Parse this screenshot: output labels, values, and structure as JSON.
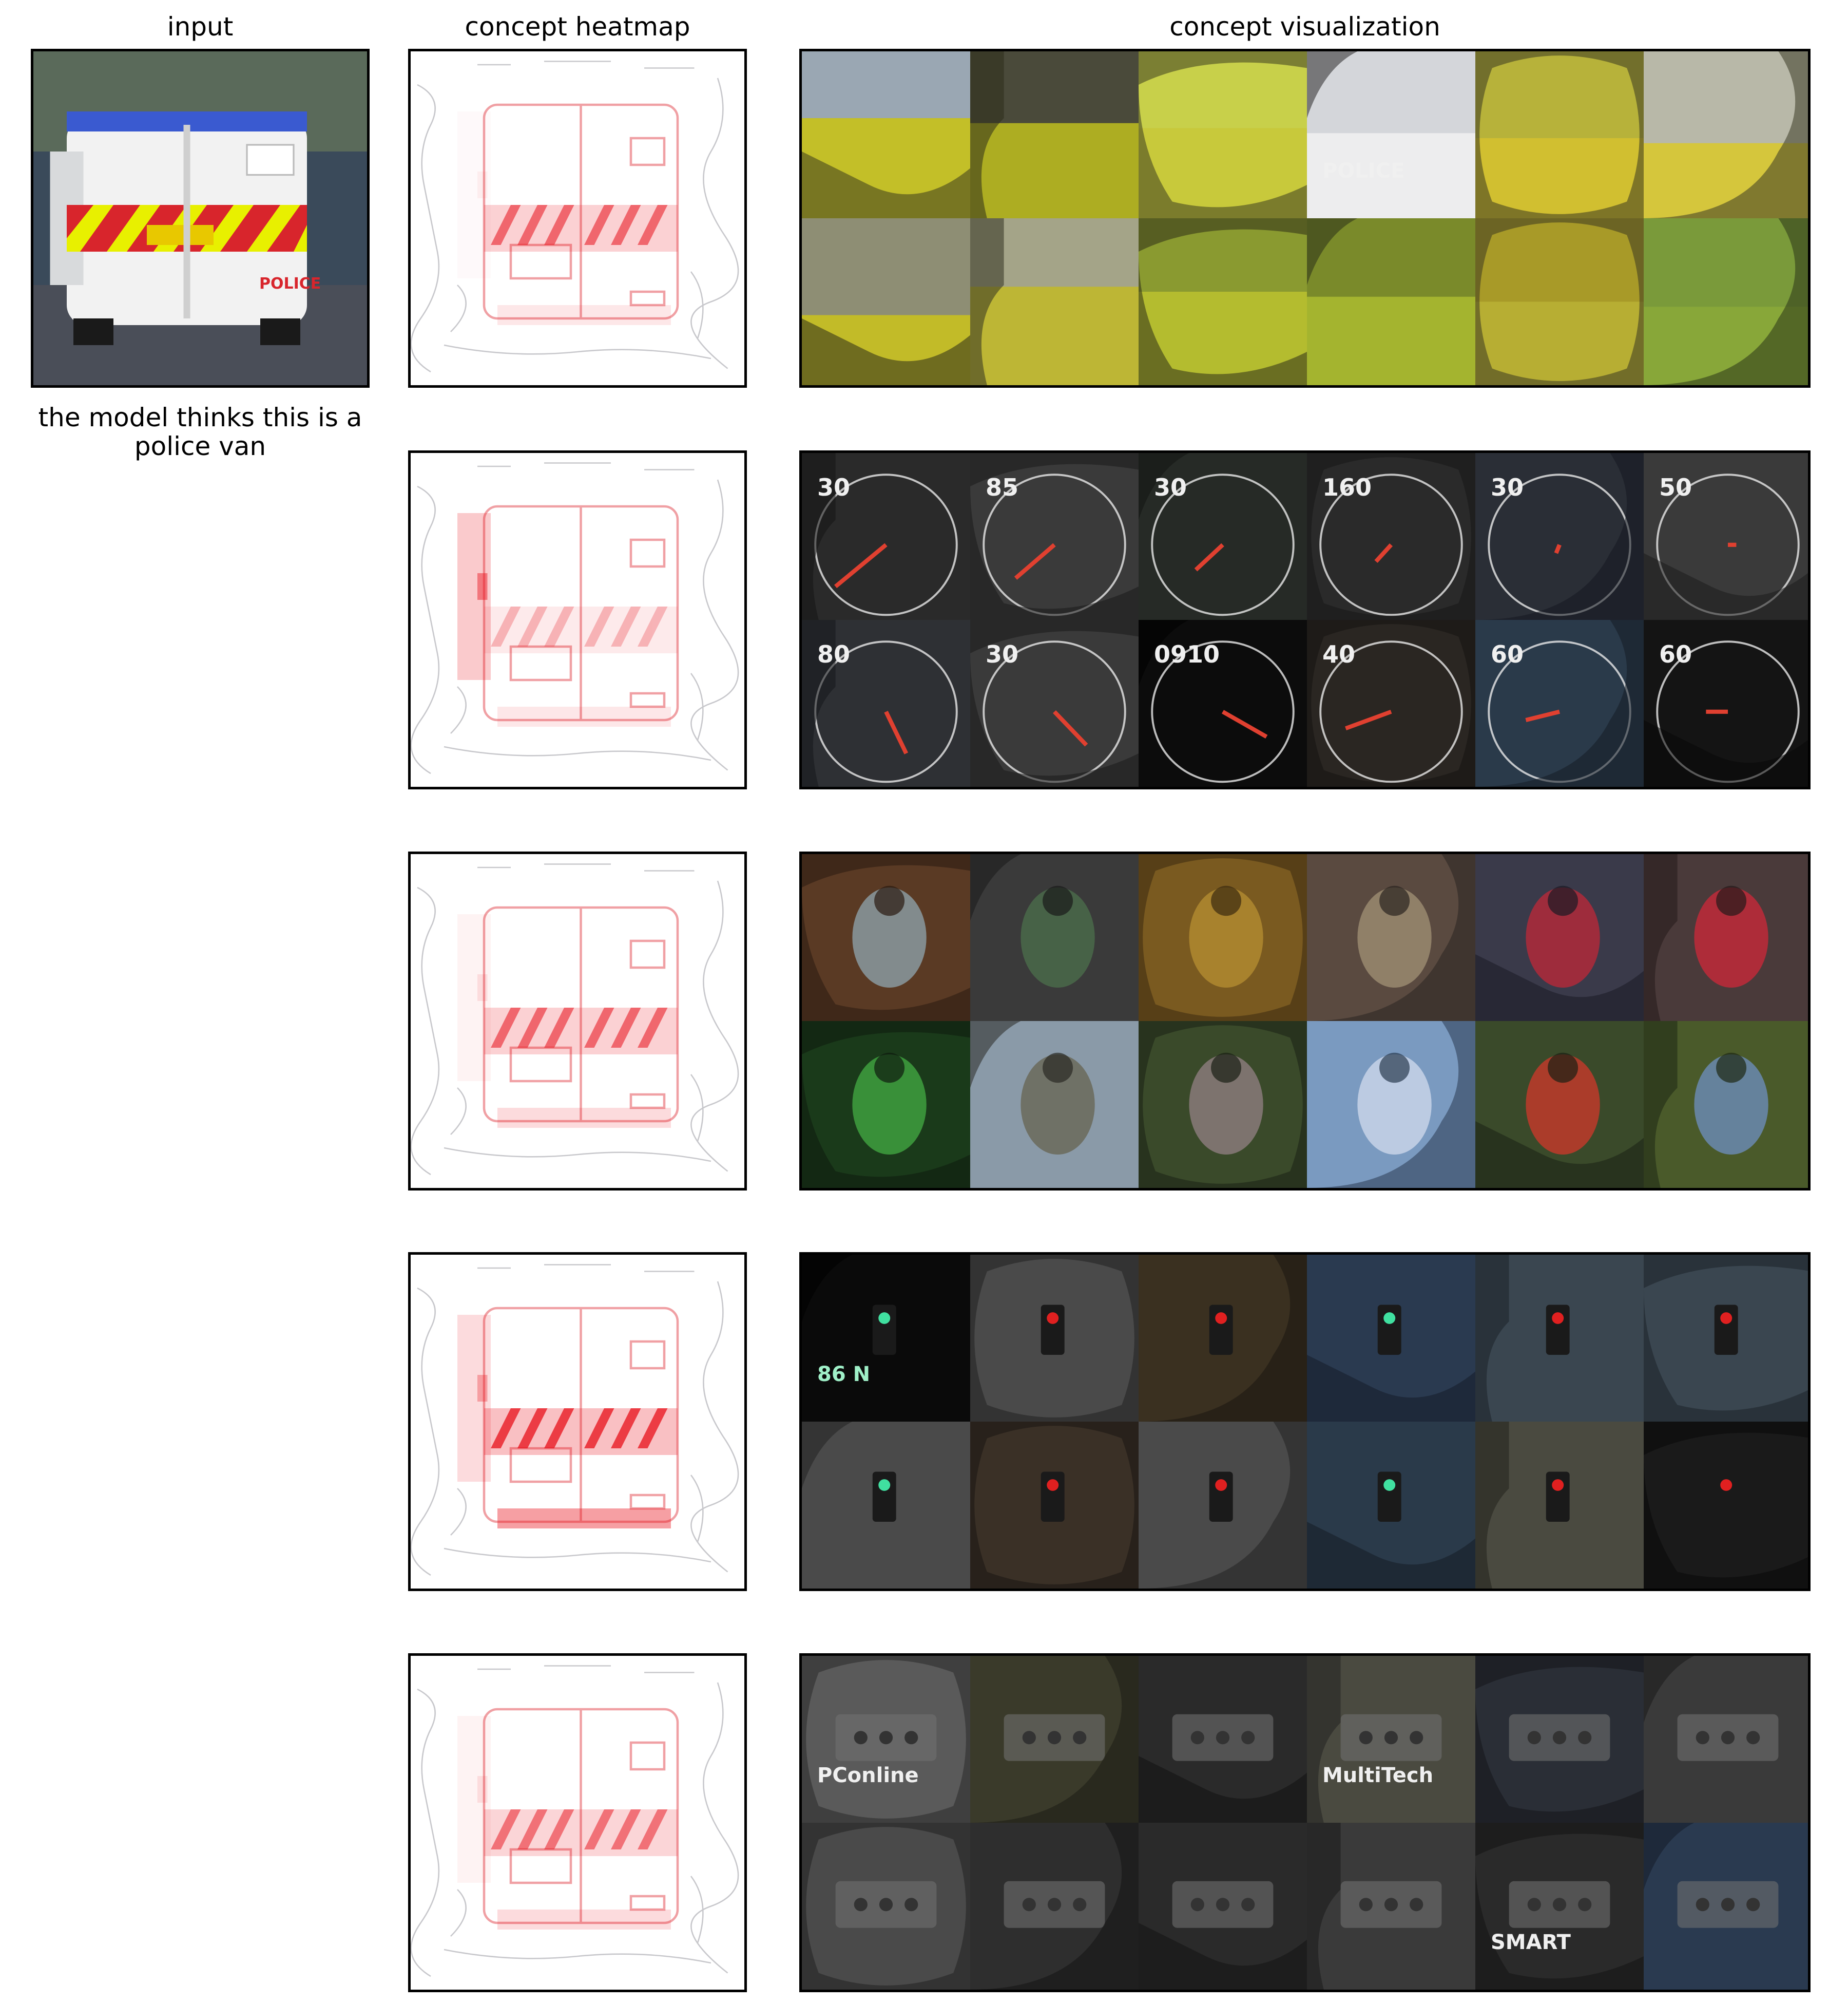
{
  "headers": {
    "input": "input",
    "heatmap": "concept heatmap",
    "visualization": "concept visualization"
  },
  "caption": "the model thinks this is a police van",
  "input_image": {
    "description_icon": "police-van-photo",
    "van_text": "POLICE",
    "colors": {
      "stripe_red": "#d8252c",
      "stripe_yellow": "#e8f000",
      "van_white": "#f2f2f2"
    }
  },
  "heatmap_color": "#e8101a",
  "concepts": [
    {
      "id": 1,
      "tiles": [
        {
          "sky": "#9aa7b3",
          "fg": "#c8c218",
          "dark": "#3a3a1e",
          "label": ""
        },
        {
          "sky": "#4a4a3a",
          "fg": "#b8b820",
          "dark": "#2e2e1a",
          "label": ""
        },
        {
          "sky": "#c8d04a",
          "fg": "#c8c83a",
          "dark": "#3c3c20",
          "label": ""
        },
        {
          "sky": "#d4d6da",
          "fg": "#f0f0f0",
          "dark": "#2a2a2a",
          "label": "POLICE"
        },
        {
          "sky": "#b7b23a",
          "fg": "#d4c030",
          "dark": "#3a3820",
          "label": ""
        },
        {
          "sky": "#b8b8a8",
          "fg": "#d8c830",
          "dark": "#3a3a24",
          "label": ""
        },
        {
          "sky": "#8e8e74",
          "fg": "#c8c020",
          "dark": "#2c2c18",
          "label": ""
        },
        {
          "sky": "#a4a488",
          "fg": "#c0b82c",
          "dark": "#323220",
          "label": ""
        },
        {
          "sky": "#8a9a30",
          "fg": "#b8c030",
          "dark": "#2e2e18",
          "label": ""
        },
        {
          "sky": "#7a8a2a",
          "fg": "#a8b830",
          "dark": "#2a3018",
          "label": ""
        },
        {
          "sky": "#a89a28",
          "fg": "#b8b034",
          "dark": "#3a3820",
          "label": ""
        },
        {
          "sky": "#7a9a3a",
          "fg": "#8aa83a",
          "dark": "#2a3418",
          "label": ""
        }
      ]
    },
    {
      "id": 2,
      "tiles": [
        {
          "sky": "#2a2a2a",
          "fg": "#5e5e5e",
          "dark": "#141414",
          "label": "30"
        },
        {
          "sky": "#3a3a3a",
          "fg": "#6a6a6a",
          "dark": "#1a1a1a",
          "label": "85"
        },
        {
          "sky": "#262a26",
          "fg": "#607060",
          "dark": "#121412",
          "label": "30"
        },
        {
          "sky": "#2a2a2a",
          "fg": "#8a8a8a",
          "dark": "#161616",
          "label": "160"
        },
        {
          "sky": "#2a2e36",
          "fg": "#6a7080",
          "dark": "#141820",
          "label": "30"
        },
        {
          "sky": "#3a3a3a",
          "fg": "#7a7a7a",
          "dark": "#1c1c1c",
          "label": "50"
        },
        {
          "sky": "#2e3034",
          "fg": "#646a72",
          "dark": "#16181c",
          "label": "80"
        },
        {
          "sky": "#3a3a3a",
          "fg": "#7a7a7a",
          "dark": "#1a1a1a",
          "label": "30"
        },
        {
          "sky": "#0c0c0c",
          "fg": "#1a1a1a",
          "dark": "#000000",
          "label": "0910"
        },
        {
          "sky": "#2a2622",
          "fg": "#5a5248",
          "dark": "#141210",
          "label": "40"
        },
        {
          "sky": "#2a3a4a",
          "fg": "#5a7a94",
          "dark": "#141c24",
          "label": "60"
        },
        {
          "sky": "#141414",
          "fg": "#242424",
          "dark": "#080808",
          "label": "60"
        }
      ]
    },
    {
      "id": 3,
      "tiles": [
        {
          "sky": "#5a3a24",
          "fg": "#8a9aa0",
          "dark": "#2a1a10",
          "label": ""
        },
        {
          "sky": "#3a3a3a",
          "fg": "#4a6a4a",
          "dark": "#1a1a1a",
          "label": ""
        },
        {
          "sky": "#7a5a20",
          "fg": "#b08a30",
          "dark": "#3a2a10",
          "label": ""
        },
        {
          "sky": "#5a4a40",
          "fg": "#9a8a70",
          "dark": "#2a2420",
          "label": ""
        },
        {
          "sky": "#3a3a4a",
          "fg": "#b02a3a",
          "dark": "#1a1a24",
          "label": ""
        },
        {
          "sky": "#4a3a3a",
          "fg": "#c02a3a",
          "dark": "#241a1a",
          "label": ""
        },
        {
          "sky": "#1a3a1a",
          "fg": "#40a040",
          "dark": "#0e1a0e",
          "label": ""
        },
        {
          "sky": "#8a9aa8",
          "fg": "#6a6a5a",
          "dark": "#2a2a24",
          "label": ""
        },
        {
          "sky": "#3a4a2a",
          "fg": "#8a7a7a",
          "dark": "#1a2014",
          "label": ""
        },
        {
          "sky": "#7a9ac0",
          "fg": "#c8d4e8",
          "dark": "#2a3a50",
          "label": ""
        },
        {
          "sky": "#3a4a2a",
          "fg": "#c03a2a",
          "dark": "#1a2014",
          "label": ""
        },
        {
          "sky": "#4a5a2a",
          "fg": "#6a8ab0",
          "dark": "#1e2814",
          "label": ""
        }
      ]
    },
    {
      "id": 4,
      "tiles": [
        {
          "sky": "#0a0a0a",
          "fg": "#40c080",
          "dark": "#000000",
          "label": "86 N"
        },
        {
          "sky": "#4a4a4a",
          "fg": "#d8d8d8",
          "dark": "#202020",
          "label": ""
        },
        {
          "sky": "#3a3020",
          "fg": "#c8a060",
          "dark": "#1a1610",
          "label": ""
        },
        {
          "sky": "#2a3a50",
          "fg": "#6a8ab0",
          "dark": "#141c28",
          "label": ""
        },
        {
          "sky": "#3a4650",
          "fg": "#b8cce0",
          "dark": "#1c2228",
          "label": ""
        },
        {
          "sky": "#3a4650",
          "fg": "#a8c0d8",
          "dark": "#1c2228",
          "label": ""
        },
        {
          "sky": "#4a4a4a",
          "fg": "#dcdcdc",
          "dark": "#222222",
          "label": ""
        },
        {
          "sky": "#3a3026",
          "fg": "#8a7a6a",
          "dark": "#1a1612",
          "label": ""
        },
        {
          "sky": "#4a4a4a",
          "fg": "#e8e8e8",
          "dark": "#222222",
          "label": ""
        },
        {
          "sky": "#2a3a4a",
          "fg": "#a8d0e8",
          "dark": "#141c24",
          "label": ""
        },
        {
          "sky": "#4a4a40",
          "fg": "#b0a890",
          "dark": "#22221c",
          "label": ""
        },
        {
          "sky": "#1a1a1a",
          "fg": "#2a2a2a",
          "dark": "#0a0a0a",
          "label": ""
        }
      ]
    },
    {
      "id": 5,
      "tiles": [
        {
          "sky": "#5a5a5a",
          "fg": "#e0e0e0",
          "dark": "#2a2a2a",
          "label": "PConline"
        },
        {
          "sky": "#3a3a2a",
          "fg": "#a8aa9a",
          "dark": "#1c1c14",
          "label": ""
        },
        {
          "sky": "#2a2a2a",
          "fg": "#d8d8d8",
          "dark": "#101010",
          "label": ""
        },
        {
          "sky": "#4a4a40",
          "fg": "#d8d8c8",
          "dark": "#222220",
          "label": "MultiTech"
        },
        {
          "sky": "#2a2e36",
          "fg": "#8a94a4",
          "dark": "#14161a",
          "label": ""
        },
        {
          "sky": "#3a3a3a",
          "fg": "#8a8a8a",
          "dark": "#1a1a1a",
          "label": ""
        },
        {
          "sky": "#4a4a4a",
          "fg": "#dadada",
          "dark": "#202020",
          "label": ""
        },
        {
          "sky": "#2e2e2e",
          "fg": "#9a9a9a",
          "dark": "#141414",
          "label": ""
        },
        {
          "sky": "#2a2a2a",
          "fg": "#8a8a8a",
          "dark": "#121212",
          "label": ""
        },
        {
          "sky": "#3a3a3a",
          "fg": "#d0d4d8",
          "dark": "#1a1a1a",
          "label": ""
        },
        {
          "sky": "#2a2a2a",
          "fg": "#6a6a6a",
          "dark": "#121212",
          "label": "SMART"
        },
        {
          "sky": "#2a3a50",
          "fg": "#8a94a0",
          "dark": "#141c28",
          "label": ""
        }
      ]
    }
  ]
}
